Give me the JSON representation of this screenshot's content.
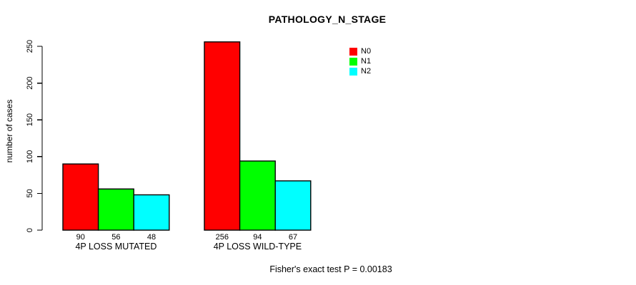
{
  "page": {
    "background": "#FFFFFF",
    "text_color": "#000000"
  },
  "chart_data": {
    "type": "bar",
    "title": "PATHOLOGY_N_STAGE",
    "xlabel": "",
    "ylabel": "number of cases",
    "categories": [
      "4P LOSS MUTATED",
      "4P LOSS WILD-TYPE"
    ],
    "series": [
      {
        "name": "N0",
        "color": "#FF0000",
        "values": [
          90,
          256
        ]
      },
      {
        "name": "N1",
        "color": "#00FF00",
        "values": [
          56,
          94
        ]
      },
      {
        "name": "N2",
        "color": "#00FFFF",
        "values": [
          48,
          67
        ]
      }
    ],
    "bar_value_labels": [
      [
        "90",
        "56",
        "48"
      ],
      [
        "256",
        "94",
        "67"
      ]
    ],
    "yticks": [
      0,
      50,
      100,
      150,
      200,
      250
    ],
    "ylim": [
      0,
      260
    ],
    "grid": false,
    "bar_border_color": "#000000",
    "legend": {
      "position": "top-right",
      "entries": [
        "N0",
        "N1",
        "N2"
      ]
    },
    "annotation": "Fisher's exact test P = 0.00183"
  }
}
